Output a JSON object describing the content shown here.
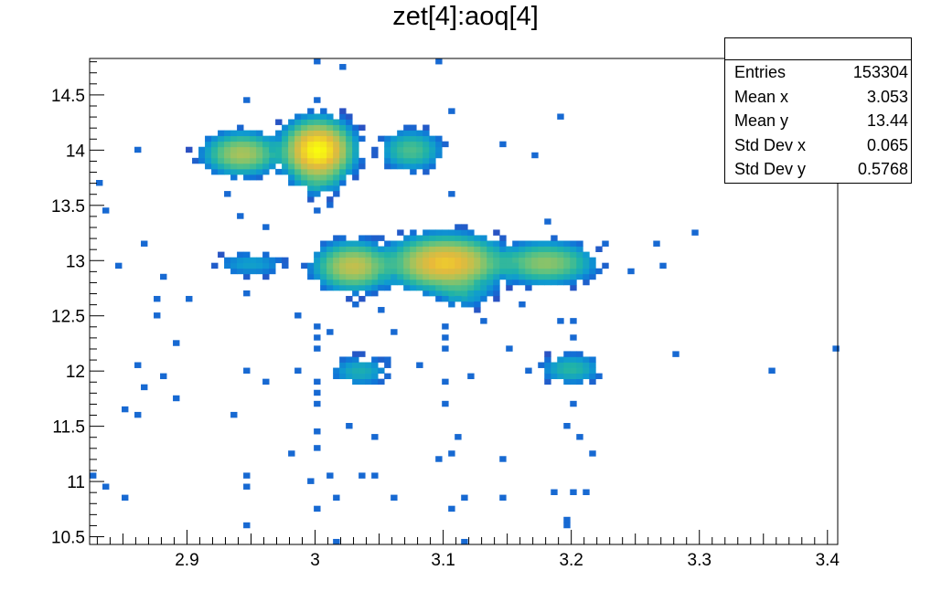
{
  "chart_data": {
    "type": "heatmap",
    "title": "zet[4]:aoq[4]",
    "xlabel": "",
    "ylabel": "",
    "xlim": [
      2.824,
      3.408
    ],
    "ylim": [
      10.43,
      14.83
    ],
    "bin_width_x": 0.005,
    "bin_width_y": 0.05,
    "x_ticks": [
      "2.9",
      "3",
      "3.1",
      "3.2",
      "3.3",
      "3.4"
    ],
    "x_tick_values": [
      2.9,
      3.0,
      3.1,
      3.2,
      3.3,
      3.4
    ],
    "y_ticks": [
      "10.5",
      "11",
      "11.5",
      "12",
      "12.5",
      "13",
      "13.5",
      "14",
      "14.5"
    ],
    "y_tick_values": [
      10.5,
      11,
      11.5,
      12,
      12.5,
      13,
      13.5,
      14,
      14.5
    ],
    "palette": [
      "#352a87",
      "#2d4dbf",
      "#1072d8",
      "#0f9bd0",
      "#20b3a8",
      "#5cc281",
      "#a9c35a",
      "#e8ba3a",
      "#f9fb0e"
    ],
    "clusters": [
      {
        "x": 3.002,
        "y": 14.0,
        "sx": 0.012,
        "sy": 0.12,
        "peak": 100
      },
      {
        "x": 2.943,
        "y": 13.97,
        "sx": 0.014,
        "sy": 0.09,
        "peak": 28
      },
      {
        "x": 3.075,
        "y": 14.0,
        "sx": 0.012,
        "sy": 0.09,
        "peak": 12
      },
      {
        "x": 3.003,
        "y": 13.72,
        "sx": 0.01,
        "sy": 0.08,
        "peak": 6
      },
      {
        "x": 3.102,
        "y": 12.98,
        "sx": 0.02,
        "sy": 0.11,
        "peak": 62
      },
      {
        "x": 3.03,
        "y": 12.95,
        "sx": 0.014,
        "sy": 0.1,
        "peak": 36
      },
      {
        "x": 3.18,
        "y": 12.98,
        "sx": 0.018,
        "sy": 0.09,
        "peak": 22
      },
      {
        "x": 3.115,
        "y": 12.72,
        "sx": 0.012,
        "sy": 0.08,
        "peak": 6
      },
      {
        "x": 2.95,
        "y": 12.97,
        "sx": 0.015,
        "sy": 0.06,
        "peak": 4
      },
      {
        "x": 3.2,
        "y": 12.02,
        "sx": 0.012,
        "sy": 0.07,
        "peak": 8
      },
      {
        "x": 3.035,
        "y": 12.0,
        "sx": 0.012,
        "sy": 0.07,
        "peak": 6
      }
    ],
    "isolated_bins": [
      [
        3.0,
        14.81
      ],
      [
        3.021,
        14.77
      ],
      [
        3.097,
        14.81
      ],
      [
        2.945,
        14.45
      ],
      [
        3.0,
        14.45
      ],
      [
        3.104,
        14.37
      ],
      [
        3.19,
        14.29
      ],
      [
        2.861,
        13.99
      ],
      [
        3.148,
        14.06
      ],
      [
        3.171,
        13.95
      ],
      [
        2.83,
        13.72
      ],
      [
        2.838,
        13.46
      ],
      [
        2.94,
        13.39
      ],
      [
        3.104,
        13.58
      ],
      [
        3.295,
        13.28
      ],
      [
        3.18,
        13.35
      ],
      [
        3.226,
        13.16
      ],
      [
        3.268,
        13.14
      ],
      [
        2.866,
        13.14
      ],
      [
        2.847,
        12.96
      ],
      [
        2.881,
        12.84
      ],
      [
        2.899,
        12.63
      ],
      [
        2.874,
        12.67
      ],
      [
        3.245,
        12.9
      ],
      [
        3.27,
        12.96
      ],
      [
        2.947,
        12.72
      ],
      [
        2.986,
        12.51
      ],
      [
        2.875,
        12.48
      ],
      [
        2.89,
        12.26
      ],
      [
        3.279,
        12.15
      ],
      [
        3.404,
        12.22
      ],
      [
        3.355,
        11.99
      ],
      [
        2.861,
        12.05
      ],
      [
        2.879,
        11.95
      ],
      [
        2.868,
        11.87
      ],
      [
        2.893,
        11.78
      ],
      [
        2.945,
        11.99
      ],
      [
        2.986,
        12.03
      ],
      [
        2.961,
        11.89
      ],
      [
        2.849,
        11.66
      ],
      [
        2.861,
        11.62
      ],
      [
        2.938,
        11.58
      ],
      [
        3.0,
        11.68
      ],
      [
        3.0,
        11.47
      ],
      [
        3.025,
        11.51
      ],
      [
        3.204,
        11.38
      ],
      [
        3.197,
        11.51
      ],
      [
        3.216,
        11.23
      ],
      [
        2.983,
        11.26
      ],
      [
        3.0,
        11.29
      ],
      [
        3.104,
        11.24
      ],
      [
        3.111,
        11.39
      ],
      [
        3.146,
        11.21
      ],
      [
        3.047,
        11.41
      ],
      [
        2.825,
        11.06
      ],
      [
        2.838,
        10.94
      ],
      [
        2.849,
        10.83
      ],
      [
        2.945,
        10.96
      ],
      [
        2.945,
        11.06
      ],
      [
        2.996,
        11.02
      ],
      [
        3.011,
        11.04
      ],
      [
        3.036,
        11.06
      ],
      [
        3.047,
        11.06
      ],
      [
        3.061,
        10.86
      ],
      [
        3.108,
        10.77
      ],
      [
        3.115,
        10.86
      ],
      [
        3.146,
        10.86
      ],
      [
        3.186,
        10.88
      ],
      [
        3.2,
        10.92
      ],
      [
        3.211,
        10.92
      ],
      [
        3.0,
        10.76
      ],
      [
        3.018,
        10.84
      ],
      [
        2.945,
        10.61
      ],
      [
        3.197,
        10.67
      ],
      [
        3.197,
        10.58
      ],
      [
        3.018,
        10.45
      ],
      [
        3.115,
        10.45
      ],
      [
        3.0,
        12.4
      ],
      [
        3.0,
        12.3
      ],
      [
        3.0,
        12.2
      ],
      [
        3.0,
        11.9
      ],
      [
        3.0,
        11.8
      ],
      [
        3.01,
        12.35
      ],
      [
        3.1,
        12.4
      ],
      [
        3.1,
        12.3
      ],
      [
        3.1,
        12.2
      ],
      [
        3.1,
        11.9
      ],
      [
        3.1,
        11.7
      ],
      [
        3.095,
        11.2
      ],
      [
        3.2,
        12.3
      ],
      [
        3.2,
        12.45
      ],
      [
        3.2,
        11.7
      ],
      [
        3.19,
        12.45
      ],
      [
        3.06,
        12.35
      ],
      [
        3.13,
        12.45
      ],
      [
        3.15,
        12.2
      ],
      [
        3.08,
        12.05
      ],
      [
        3.12,
        11.95
      ],
      [
        3.165,
        12.0
      ],
      [
        3.055,
        12.1
      ],
      [
        3.03,
        12.6
      ],
      [
        3.05,
        12.55
      ],
      [
        3.16,
        12.6
      ],
      [
        2.96,
        13.3
      ],
      [
        3.0,
        13.45
      ],
      [
        3.01,
        13.5
      ],
      [
        2.93,
        13.6
      ]
    ]
  },
  "stats": {
    "rows": [
      {
        "label": "Entries",
        "value": "153304"
      },
      {
        "label": "Mean x",
        "value": "3.053"
      },
      {
        "label": "Mean y",
        "value": "13.44"
      },
      {
        "label": "Std Dev x",
        "value": "0.065"
      },
      {
        "label": "Std Dev y",
        "value": "0.5768"
      }
    ]
  }
}
